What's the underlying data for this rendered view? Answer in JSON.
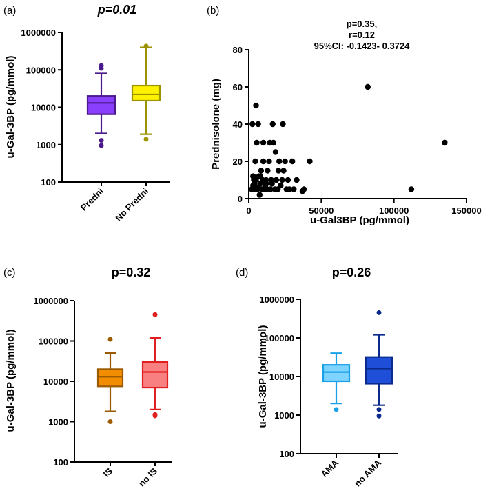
{
  "chart_data": [
    {
      "panel": "(a)",
      "type": "box",
      "title": "p=0.01",
      "title_italic": true,
      "ylabel": "u-Gal-3BP (pg/mmol)",
      "yscale": "log",
      "ylim": [
        100,
        1000000
      ],
      "yticks": [
        100,
        1000,
        10000,
        100000,
        1000000
      ],
      "ytick_labels": [
        "100",
        "1000",
        "10000",
        "100000",
        "1000000"
      ],
      "categories": [
        "Predni",
        "No Predni"
      ],
      "boxes": [
        {
          "name": "Predni",
          "whisker_low": 2000,
          "q1": 6500,
          "median": 13000,
          "q3": 20000,
          "whisker_high": 80000,
          "outliers": [
            1300,
            950,
            110000,
            130000
          ],
          "fill": "#8a3ffc",
          "stroke": "#4b1a8c"
        },
        {
          "name": "No Predni",
          "whisker_low": 1900,
          "q1": 15000,
          "median": 22000,
          "q3": 38000,
          "whisker_high": 400000,
          "outliers": [
            1400,
            430000
          ],
          "fill": "#fff200",
          "stroke": "#9b9400"
        }
      ]
    },
    {
      "panel": "(b)",
      "type": "scatter",
      "annotation": [
        "p=0.35,",
        "r=0.12",
        "95%CI: -0.1423- 0.3724"
      ],
      "xlabel": "u-Gal3BP (pg/mmol)",
      "ylabel": "Prednisolone (mg)",
      "xlim": [
        0,
        150000
      ],
      "ylim": [
        0,
        80
      ],
      "xticks": [
        0,
        50000,
        100000,
        150000
      ],
      "xtick_labels": [
        "0",
        "50000",
        "100000",
        "150000"
      ],
      "yticks": [
        0,
        20,
        40,
        60,
        80
      ],
      "ytick_labels": [
        "0",
        "20",
        "40",
        "60",
        "80"
      ],
      "color": "#000000",
      "points": [
        [
          2000,
          5
        ],
        [
          3000,
          7
        ],
        [
          3500,
          10
        ],
        [
          4000,
          5
        ],
        [
          4500,
          20
        ],
        [
          5000,
          50
        ],
        [
          5500,
          30
        ],
        [
          6000,
          5
        ],
        [
          6500,
          40
        ],
        [
          7000,
          12
        ],
        [
          7500,
          2
        ],
        [
          8000,
          8
        ],
        [
          8500,
          15
        ],
        [
          9000,
          5
        ],
        [
          9500,
          10
        ],
        [
          10000,
          20
        ],
        [
          11000,
          5
        ],
        [
          11500,
          7
        ],
        [
          12000,
          10
        ],
        [
          12500,
          5
        ],
        [
          13000,
          15
        ],
        [
          14000,
          20
        ],
        [
          14500,
          30
        ],
        [
          15000,
          5
        ],
        [
          15500,
          10
        ],
        [
          16000,
          8
        ],
        [
          16500,
          40
        ],
        [
          17000,
          30
        ],
        [
          18000,
          5
        ],
        [
          18500,
          25
        ],
        [
          19000,
          10
        ],
        [
          20000,
          5
        ],
        [
          20500,
          15
        ],
        [
          21000,
          20
        ],
        [
          22000,
          7
        ],
        [
          23000,
          10
        ],
        [
          23500,
          40
        ],
        [
          24000,
          15
        ],
        [
          25000,
          20
        ],
        [
          26000,
          5
        ],
        [
          27000,
          10
        ],
        [
          28000,
          5
        ],
        [
          30000,
          20
        ],
        [
          31000,
          5
        ],
        [
          33000,
          10
        ],
        [
          37000,
          4
        ],
        [
          38000,
          5
        ],
        [
          42000,
          20
        ],
        [
          2500,
          40
        ],
        [
          3000,
          12
        ],
        [
          4000,
          8
        ],
        [
          5000,
          10
        ],
        [
          6000,
          6
        ],
        [
          8000,
          12
        ],
        [
          10000,
          30
        ],
        [
          12000,
          8
        ],
        [
          82000,
          60
        ],
        [
          112000,
          5
        ],
        [
          135000,
          30
        ]
      ]
    },
    {
      "panel": "(c)",
      "type": "box",
      "title": "p=0.32",
      "title_italic": false,
      "ylabel": "u-Gal-3BP (pg/mmol)",
      "yscale": "log",
      "ylim": [
        100,
        1000000
      ],
      "yticks": [
        100,
        1000,
        10000,
        100000,
        1000000
      ],
      "ytick_labels": [
        "100",
        "1000",
        "10000",
        "100000",
        "1000000"
      ],
      "categories": [
        "IS",
        "no IS"
      ],
      "boxes": [
        {
          "name": "IS",
          "whisker_low": 1800,
          "q1": 7500,
          "median": 13000,
          "q3": 20000,
          "whisker_high": 50000,
          "outliers": [
            1000,
            110000
          ],
          "fill": "#f28c00",
          "stroke": "#9b5a00"
        },
        {
          "name": "no IS",
          "whisker_low": 2000,
          "q1": 7000,
          "median": 17000,
          "q3": 30000,
          "whisker_high": 120000,
          "outliers": [
            1400,
            1500,
            450000
          ],
          "fill": "#f98080",
          "stroke": "#e02020"
        }
      ]
    },
    {
      "panel": "(d)",
      "type": "box",
      "title": "p=0.26",
      "title_italic": false,
      "ylabel": "u-Gal-3BP (pg/mmol)",
      "yscale": "log",
      "ylim": [
        100,
        1000000
      ],
      "yticks": [
        100,
        1000,
        10000,
        100000,
        1000000
      ],
      "ytick_labels": [
        "100",
        "1000",
        "10000",
        "100000",
        "1000000"
      ],
      "categories": [
        "AMA",
        "no AMA"
      ],
      "boxes": [
        {
          "name": "AMA",
          "whisker_low": 2000,
          "q1": 7500,
          "median": 13000,
          "q3": 20000,
          "whisker_high": 40000,
          "outliers": [
            1400
          ],
          "fill": "#7fd3ff",
          "stroke": "#1aa0e6"
        },
        {
          "name": "no AMA",
          "whisker_low": 1800,
          "q1": 6500,
          "median": 16000,
          "q3": 32000,
          "whisker_high": 120000,
          "outliers": [
            950,
            1400,
            450000
          ],
          "fill": "#1f4fd8",
          "stroke": "#0a2a8c"
        }
      ]
    }
  ]
}
